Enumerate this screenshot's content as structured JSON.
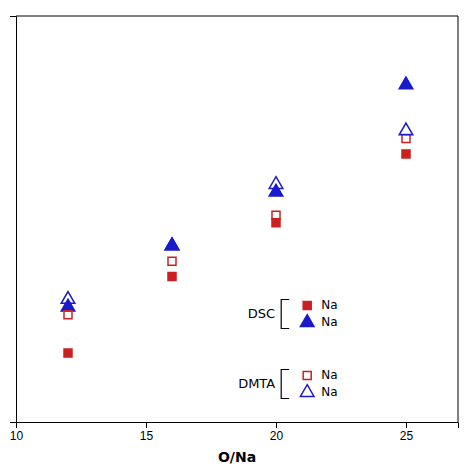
{
  "chart_data": {
    "type": "scatter",
    "xlabel": "O/Na",
    "x": [
      12,
      16,
      20,
      25
    ],
    "series": [
      {
        "name": "Na",
        "group": "DSC",
        "color": "#CC2020",
        "marker": "square",
        "values": [
          56,
          66,
          73,
          82
        ]
      },
      {
        "name": "Na",
        "group": "DSC",
        "color": "#1A1ACC",
        "marker": "triangle",
        "values": [
          62,
          70,
          77,
          91
        ]
      },
      {
        "name": "Na",
        "group": "DMTA",
        "color": "#CC2020",
        "marker": "square-open",
        "values": [
          61,
          68,
          74,
          84
        ]
      },
      {
        "name": "Na",
        "group": "DMTA",
        "color": "#1A1ACC",
        "marker": "triangle-open",
        "values": [
          63,
          70,
          78,
          85
        ]
      }
    ],
    "xlim": [
      10,
      27
    ],
    "xticks": [
      10,
      15,
      20,
      25
    ],
    "ylim": [
      47,
      100
    ],
    "yticks": [],
    "tick_labels": "x",
    "grid": false,
    "legend": "lower right"
  }
}
